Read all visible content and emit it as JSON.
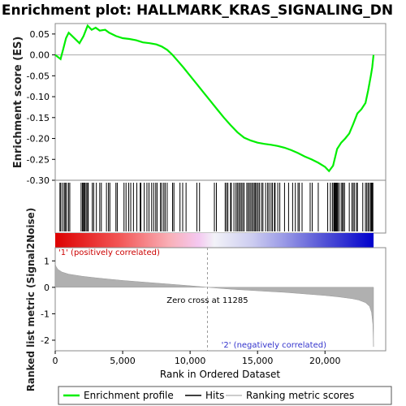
{
  "chart_data": {
    "type": "line",
    "title": "Enrichment plot: HALLMARK_KRAS_SIGNALING_DN",
    "es_panel": {
      "ylabel": "Enrichment score (ES)",
      "ylim": [
        -0.3,
        0.075
      ],
      "yticks": [
        "0.05",
        "0.00",
        "-0.05",
        "-0.10",
        "-0.15",
        "-0.20",
        "-0.25",
        "-0.30"
      ],
      "ytick_values": [
        0.05,
        0.0,
        -0.05,
        -0.1,
        -0.15,
        -0.2,
        -0.25,
        -0.3
      ],
      "series": [
        {
          "name": "Enrichment profile",
          "color": "#00ee00",
          "x": [
            0,
            400,
            600,
            800,
            1000,
            1200,
            1800,
            2100,
            2400,
            2700,
            3000,
            3300,
            3700,
            4000,
            4500,
            5000,
            5500,
            6000,
            6500,
            7000,
            7500,
            7900,
            8300,
            8700,
            9100,
            9500,
            10000,
            10500,
            11000,
            11500,
            12000,
            12500,
            13000,
            13500,
            14000,
            14500,
            15000,
            15500,
            16000,
            16500,
            17000,
            17500,
            18000,
            18500,
            19000,
            19500,
            20000,
            20300,
            20600,
            20900,
            21200,
            21500,
            21800,
            22100,
            22400,
            22700,
            23000,
            23200,
            23400,
            23500,
            23600
          ],
          "y": [
            0.0,
            -0.01,
            0.015,
            0.04,
            0.053,
            0.047,
            0.028,
            0.045,
            0.07,
            0.06,
            0.065,
            0.058,
            0.06,
            0.053,
            0.045,
            0.04,
            0.038,
            0.035,
            0.03,
            0.028,
            0.025,
            0.02,
            0.012,
            0.0,
            -0.015,
            -0.03,
            -0.05,
            -0.07,
            -0.09,
            -0.11,
            -0.13,
            -0.15,
            -0.168,
            -0.185,
            -0.198,
            -0.205,
            -0.21,
            -0.213,
            -0.215,
            -0.218,
            -0.222,
            -0.228,
            -0.235,
            -0.243,
            -0.25,
            -0.258,
            -0.268,
            -0.278,
            -0.265,
            -0.225,
            -0.21,
            -0.2,
            -0.188,
            -0.165,
            -0.14,
            -0.13,
            -0.115,
            -0.085,
            -0.05,
            -0.03,
            0.0
          ]
        }
      ],
      "grid": false
    },
    "hits": {
      "name": "Hits",
      "x": [
        350,
        420,
        560,
        680,
        760,
        850,
        990,
        1080,
        1920,
        2020,
        2090,
        2150,
        2210,
        2300,
        2400,
        2450,
        2750,
        2850,
        3050,
        3300,
        3420,
        3800,
        3950,
        4050,
        4500,
        4600,
        5100,
        5250,
        5450,
        5600,
        5800,
        6050,
        6300,
        6350,
        6600,
        6800,
        6950,
        7150,
        7300,
        7450,
        7550,
        7800,
        7900,
        8050,
        8150,
        8300,
        8700,
        8800,
        9250,
        9450,
        9700,
        10500,
        10700,
        11800,
        11950,
        12600,
        12700,
        12800,
        13000,
        13050,
        13250,
        13400,
        13500,
        13600,
        13700,
        13800,
        13900,
        14000,
        14200,
        14300,
        14400,
        14500,
        14600,
        14700,
        14800,
        14850,
        14950,
        15050,
        15150,
        15300,
        15400,
        15600,
        15750,
        15850,
        16000,
        16100,
        16250,
        16300,
        16500,
        16650,
        17000,
        17300,
        17600,
        17800,
        18000,
        18100,
        18300,
        18900,
        19050,
        19500,
        20200,
        20400,
        20550,
        20650,
        20700,
        20750,
        20800,
        20850,
        20900,
        20950,
        21050,
        21200,
        21300,
        21350,
        21450,
        21800,
        22000,
        22100,
        22200,
        22350,
        22400,
        22800,
        23000,
        23100,
        23200,
        23300,
        23400,
        23450,
        23500,
        23550
      ]
    },
    "ranked_panel": {
      "name": "Ranking metric scores",
      "ylabel": "Ranked list metric (Signal2Noise)",
      "ylim": [
        -2.4,
        1.5
      ],
      "yticks": [
        "1",
        "0",
        "-1",
        "-2"
      ],
      "ytick_values": [
        1,
        0,
        -1,
        -2
      ],
      "x": [
        0,
        50,
        200,
        500,
        1000,
        2000,
        3000,
        4000,
        5000,
        6000,
        7000,
        8000,
        9000,
        10000,
        11285,
        12000,
        13000,
        14000,
        15000,
        16000,
        17000,
        18000,
        19000,
        20000,
        21000,
        22000,
        22500,
        23000,
        23300,
        23450,
        23550,
        23600
      ],
      "values": [
        0.9,
        0.8,
        0.68,
        0.58,
        0.5,
        0.42,
        0.36,
        0.31,
        0.26,
        0.22,
        0.18,
        0.14,
        0.1,
        0.06,
        0.0,
        -0.03,
        -0.07,
        -0.1,
        -0.13,
        -0.16,
        -0.19,
        -0.23,
        -0.27,
        -0.31,
        -0.36,
        -0.43,
        -0.48,
        -0.58,
        -0.72,
        -0.95,
        -1.4,
        -2.25
      ],
      "zero_cross_label": "Zero cross at 11285",
      "zero_cross": 11285,
      "pos_label": "'1' (positively correlated)",
      "neg_label": "'2' (negatively correlated)",
      "pos_color": "#dd0000",
      "neg_color": "#0000cc"
    },
    "xlabel": "Rank in Ordered Dataset",
    "xlim": [
      0,
      24500
    ],
    "xticks": [
      "0",
      "5,000",
      "10,000",
      "15,000",
      "20,000"
    ],
    "xtick_values": [
      0,
      5000,
      10000,
      15000,
      20000
    ],
    "legend": {
      "placement": "bottom",
      "entries": [
        "Enrichment profile",
        "Hits",
        "Ranking metric scores"
      ]
    }
  }
}
